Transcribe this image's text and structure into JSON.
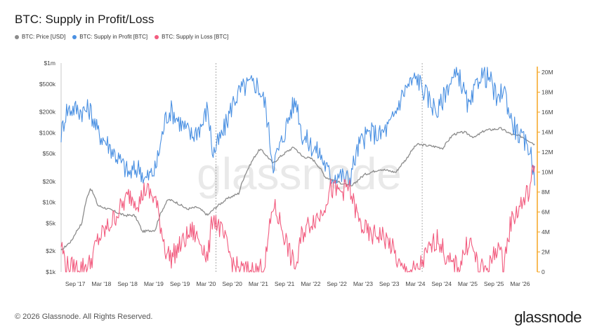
{
  "title": "BTC: Supply in Profit/Loss",
  "legend": [
    {
      "label": "BTC: Price [USD]",
      "color": "#8c8c8c"
    },
    {
      "label": "BTC: Supply in Profit [BTC]",
      "color": "#4a90e2"
    },
    {
      "label": "BTC: Supply in Loss [BTC]",
      "color": "#f25c7f"
    }
  ],
  "footer": "© 2026 Glassnode. All Rights Reserved.",
  "brand": "glassnode",
  "chart_data": {
    "type": "line",
    "left_axis": {
      "scale": "log",
      "range": [
        1000,
        1000000
      ],
      "ticks": [
        {
          "v": 1000,
          "label": "$1k"
        },
        {
          "v": 2000,
          "label": "$2k"
        },
        {
          "v": 5000,
          "label": "$5k"
        },
        {
          "v": 10000,
          "label": "$10k"
        },
        {
          "v": 20000,
          "label": "$20k"
        },
        {
          "v": 50000,
          "label": "$50k"
        },
        {
          "v": 100000,
          "label": "$100k"
        },
        {
          "v": 200000,
          "label": "$200k"
        },
        {
          "v": 500000,
          "label": "$500k"
        },
        {
          "v": 1000000,
          "label": "$1m"
        }
      ]
    },
    "right_axis": {
      "scale": "linear",
      "range": [
        0,
        21000000
      ],
      "ticks": [
        {
          "v": 0,
          "label": "0"
        },
        {
          "v": 2000000,
          "label": "2M"
        },
        {
          "v": 4000000,
          "label": "4M"
        },
        {
          "v": 6000000,
          "label": "6M"
        },
        {
          "v": 8000000,
          "label": "8M"
        },
        {
          "v": 10000000,
          "label": "10M"
        },
        {
          "v": 12000000,
          "label": "12M"
        },
        {
          "v": 14000000,
          "label": "14M"
        },
        {
          "v": 16000000,
          "label": "16M"
        },
        {
          "v": 18000000,
          "label": "18M"
        },
        {
          "v": 20000000,
          "label": "20M"
        }
      ]
    },
    "x_range": [
      2017.4,
      2026.5
    ],
    "x_ticks": [
      {
        "v": 2017.67,
        "label": "Sep '17"
      },
      {
        "v": 2018.17,
        "label": "Mar '18"
      },
      {
        "v": 2018.67,
        "label": "Sep '18"
      },
      {
        "v": 2019.17,
        "label": "Mar '19"
      },
      {
        "v": 2019.67,
        "label": "Sep '19"
      },
      {
        "v": 2020.17,
        "label": "Mar '20"
      },
      {
        "v": 2020.67,
        "label": "Sep '20"
      },
      {
        "v": 2021.17,
        "label": "Mar '21"
      },
      {
        "v": 2021.67,
        "label": "Sep '21"
      },
      {
        "v": 2022.17,
        "label": "Mar '22"
      },
      {
        "v": 2022.67,
        "label": "Sep '22"
      },
      {
        "v": 2023.17,
        "label": "Mar '23"
      },
      {
        "v": 2023.67,
        "label": "Sep '23"
      },
      {
        "v": 2024.17,
        "label": "Mar '24"
      },
      {
        "v": 2024.67,
        "label": "Sep '24"
      },
      {
        "v": 2025.17,
        "label": "Mar '25"
      },
      {
        "v": 2025.67,
        "label": "Sep '25"
      },
      {
        "v": 2026.17,
        "label": "Mar '26"
      }
    ],
    "halving_markers": [
      2020.36,
      2024.3
    ],
    "series": [
      {
        "name": "BTC: Price [USD]",
        "axis": "left",
        "color": "#8c8c8c",
        "x": [
          2017.4,
          2017.6,
          2017.8,
          2017.96,
          2018.1,
          2018.3,
          2018.6,
          2018.8,
          2018.95,
          2019.2,
          2019.45,
          2019.6,
          2019.8,
          2020.0,
          2020.2,
          2020.4,
          2020.6,
          2020.8,
          2021.0,
          2021.2,
          2021.45,
          2021.6,
          2021.85,
          2022.0,
          2022.2,
          2022.45,
          2022.7,
          2022.95,
          2023.2,
          2023.5,
          2023.8,
          2024.0,
          2024.2,
          2024.5,
          2024.7,
          2024.9,
          2025.1,
          2025.3,
          2025.5,
          2025.8,
          2026.0,
          2026.2,
          2026.45
        ],
        "values": [
          2000,
          2800,
          5000,
          16000,
          9000,
          8000,
          6500,
          6500,
          3800,
          4000,
          11000,
          10000,
          8000,
          8500,
          6500,
          9000,
          11500,
          13500,
          33000,
          58000,
          36000,
          46000,
          62000,
          46000,
          42000,
          23000,
          19500,
          16800,
          25000,
          30000,
          27000,
          42000,
          68000,
          64000,
          60000,
          95000,
          102000,
          85000,
          108000,
          115000,
          95000,
          88000,
          68000
        ]
      },
      {
        "name": "BTC: Supply in Profit [BTC]",
        "axis": "right",
        "color": "#4a90e2",
        "x": [
          2017.4,
          2017.5,
          2017.65,
          2017.8,
          2017.95,
          2018.1,
          2018.3,
          2018.5,
          2018.7,
          2018.9,
          2019.0,
          2019.2,
          2019.4,
          2019.5,
          2019.7,
          2019.9,
          2020.1,
          2020.2,
          2020.3,
          2020.5,
          2020.7,
          2020.85,
          2021.0,
          2021.15,
          2021.3,
          2021.45,
          2021.6,
          2021.8,
          2021.9,
          2022.0,
          2022.2,
          2022.35,
          2022.55,
          2022.7,
          2022.9,
          2023.1,
          2023.3,
          2023.5,
          2023.7,
          2023.9,
          2024.0,
          2024.2,
          2024.4,
          2024.6,
          2024.8,
          2025.0,
          2025.2,
          2025.4,
          2025.6,
          2025.75,
          2025.85,
          2026.0,
          2026.2,
          2026.35,
          2026.45
        ],
        "values": [
          13800,
          16200,
          16400,
          16100,
          16300,
          14000,
          12800,
          11300,
          9800,
          10500,
          9200,
          10200,
          15500,
          16200,
          14800,
          13600,
          14800,
          16500,
          11800,
          14000,
          17200,
          18300,
          18800,
          18800,
          16800,
          10800,
          12800,
          16300,
          17200,
          13800,
          12500,
          11800,
          9500,
          9800,
          9200,
          12800,
          14000,
          13700,
          14800,
          17500,
          18500,
          19500,
          17500,
          16000,
          18800,
          19800,
          16200,
          19800,
          19300,
          16800,
          18700,
          15200,
          13200,
          12500,
          9700
        ]
      },
      {
        "name": "BTC: Supply in Loss [BTC]",
        "axis": "right",
        "color": "#f25c7f",
        "x": [
          2017.4,
          2017.5,
          2017.65,
          2017.8,
          2017.95,
          2018.1,
          2018.3,
          2018.5,
          2018.7,
          2018.9,
          2019.0,
          2019.2,
          2019.4,
          2019.5,
          2019.7,
          2019.9,
          2020.1,
          2020.2,
          2020.3,
          2020.5,
          2020.7,
          2020.85,
          2021.0,
          2021.15,
          2021.3,
          2021.45,
          2021.6,
          2021.8,
          2021.9,
          2022.0,
          2022.2,
          2022.35,
          2022.55,
          2022.7,
          2022.9,
          2023.1,
          2023.3,
          2023.5,
          2023.7,
          2023.9,
          2024.0,
          2024.2,
          2024.4,
          2024.6,
          2024.8,
          2025.0,
          2025.2,
          2025.4,
          2025.6,
          2025.75,
          2025.85,
          2026.0,
          2026.2,
          2026.35,
          2026.45
        ],
        "values": [
          2800,
          600,
          400,
          500,
          800,
          3200,
          4500,
          6100,
          7700,
          7000,
          8300,
          7300,
          2200,
          1400,
          2800,
          4100,
          2800,
          1200,
          5800,
          3600,
          600,
          200,
          100,
          100,
          900,
          6800,
          4800,
          1300,
          500,
          3800,
          5200,
          5700,
          8300,
          8000,
          8500,
          4900,
          3600,
          3800,
          2700,
          200,
          100,
          100,
          1900,
          3500,
          900,
          500,
          3300,
          100,
          700,
          2800,
          600,
          5100,
          6800,
          8200,
          10800
        ]
      }
    ]
  }
}
